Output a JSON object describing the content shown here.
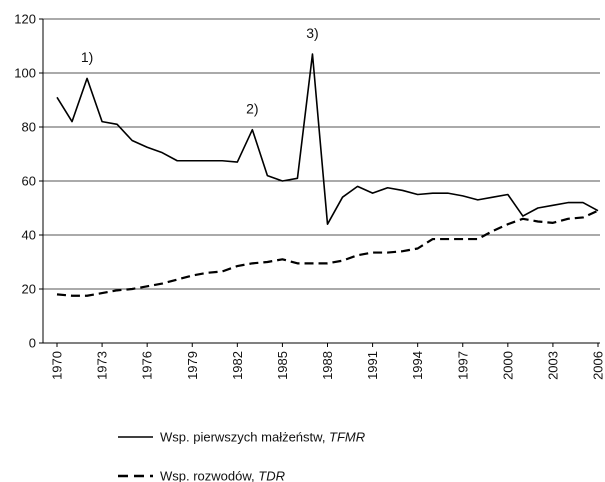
{
  "chart_data": {
    "type": "line",
    "x": [
      1970,
      1971,
      1972,
      1973,
      1974,
      1975,
      1976,
      1977,
      1978,
      1979,
      1980,
      1981,
      1982,
      1983,
      1984,
      1985,
      1986,
      1987,
      1988,
      1989,
      1990,
      1991,
      1992,
      1993,
      1994,
      1995,
      1996,
      1997,
      1998,
      1999,
      2000,
      2001,
      2002,
      2003,
      2004,
      2005,
      2006
    ],
    "xlim": [
      1970,
      2006
    ],
    "xticks": [
      1970,
      1973,
      1976,
      1979,
      1982,
      1985,
      1988,
      1991,
      1994,
      1997,
      2000,
      2003,
      2006
    ],
    "ylim": [
      0,
      120
    ],
    "yticks": [
      0,
      20,
      40,
      60,
      80,
      100,
      120
    ],
    "grid": true,
    "series": [
      {
        "name": "Wsp. pierwszych małżeństw, TFMR",
        "color": "#000000",
        "dash": "solid",
        "values": [
          91,
          82,
          98,
          82,
          81,
          75,
          72.5,
          70.5,
          67.5,
          67.5,
          67.5,
          67.5,
          67,
          79,
          62,
          60,
          61,
          107,
          44,
          54,
          58,
          55.5,
          57.5,
          56.5,
          55,
          55.5,
          55.5,
          54.5,
          53,
          54,
          55,
          47,
          50,
          51,
          52,
          52,
          49
        ]
      },
      {
        "name": "Wsp. rozwodów, TDR",
        "color": "#000000",
        "dash": "dashed",
        "values": [
          18,
          17.5,
          17.5,
          18.5,
          19.5,
          20,
          21,
          22,
          23.5,
          25,
          26,
          26.5,
          28.5,
          29.5,
          30,
          31,
          29.5,
          29.5,
          29.5,
          30.5,
          32.5,
          33.5,
          33.5,
          34,
          35,
          38.5,
          38.5,
          38.5,
          38.5,
          41.5,
          44,
          46,
          45,
          44.5,
          46,
          46.5,
          49
        ]
      }
    ],
    "annotations": [
      {
        "text": "1)",
        "x": 1972,
        "y": 104
      },
      {
        "text": "2)",
        "x": 1983,
        "y": 85
      },
      {
        "text": "3)",
        "x": 1987,
        "y": 113
      }
    ]
  }
}
